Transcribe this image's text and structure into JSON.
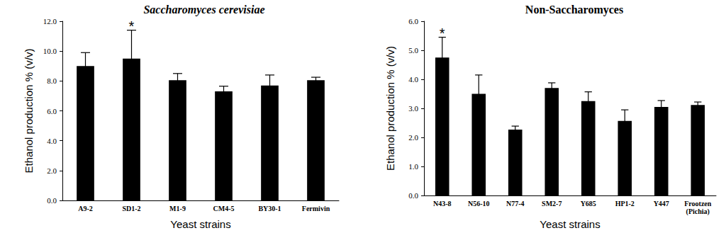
{
  "chart_data": [
    {
      "type": "bar",
      "title": "Saccharomyces cerevisiae",
      "x_label": "Yeast strains",
      "y_label": "Ethanol production % (v/v)",
      "categories": [
        "A9-2",
        "SD1-2",
        "M1-9",
        "CM4-5",
        "BY30-1",
        "Fermivin"
      ],
      "values": [
        9.0,
        9.5,
        8.05,
        7.3,
        7.7,
        8.05
      ],
      "errors": [
        0.9,
        1.9,
        0.45,
        0.35,
        0.7,
        0.2
      ],
      "color": "#000000",
      "ylim": [
        0,
        12
      ],
      "yticks": [
        {
          "value": 0,
          "label": "0.0"
        },
        {
          "value": 2,
          "label": "2.0"
        },
        {
          "value": 4,
          "label": "4.0"
        },
        {
          "value": 6,
          "label": "6.0"
        },
        {
          "value": 8,
          "label": "8.0"
        },
        {
          "value": 10,
          "label": "10.0"
        },
        {
          "value": 12,
          "label": "12.0"
        }
      ],
      "grid": false,
      "annotations": [
        {
          "category": "SD1-2",
          "text": "*"
        }
      ]
    },
    {
      "type": "bar",
      "title": "Non-Saccharomyces",
      "x_label": "Yeast strains",
      "y_label": "Ethanol production % (v/v)",
      "categories": [
        "N43-8",
        "N56-10",
        "N77-4",
        "SM2-7",
        "Y685",
        "HP1-2",
        "Y447",
        "Frootzen\n(Pichia)"
      ],
      "values": [
        4.75,
        3.5,
        2.27,
        3.7,
        3.25,
        2.57,
        3.05,
        3.12
      ],
      "errors": [
        0.7,
        0.65,
        0.12,
        0.18,
        0.32,
        0.38,
        0.22,
        0.1
      ],
      "color": "#000000",
      "ylim": [
        0,
        6
      ],
      "yticks": [
        {
          "value": 0,
          "label": "0.0"
        },
        {
          "value": 1,
          "label": "1.0"
        },
        {
          "value": 2,
          "label": "2.0"
        },
        {
          "value": 3,
          "label": "3.0"
        },
        {
          "value": 4,
          "label": "4.0"
        },
        {
          "value": 5,
          "label": "5.0"
        },
        {
          "value": 6,
          "label": "6.0"
        }
      ],
      "grid": false,
      "annotations": [
        {
          "category": "N43-8",
          "text": "*"
        }
      ]
    }
  ]
}
